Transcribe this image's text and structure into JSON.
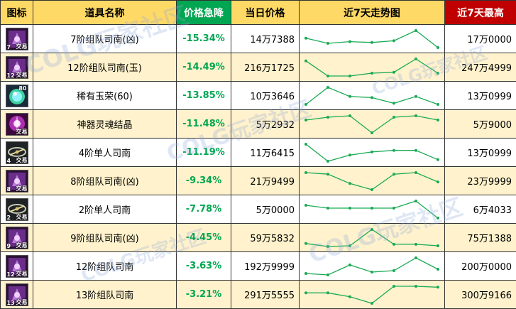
{
  "header": {
    "icon": "图标",
    "name": "道具名称",
    "drop": "价格急降",
    "price": "当日价格",
    "trend": "近7天走势图",
    "max": "近7天最高"
  },
  "colors": {
    "header_bg": "#ffd966",
    "header_green": "#00a651",
    "header_red": "#c00000",
    "row_alt": "#fff2cc",
    "pct_text": "#00a651",
    "spark": "#1aaa55"
  },
  "watermark": {
    "text": "COLG玩家社区"
  },
  "rows": [
    {
      "icon": "purple-rune-icon",
      "badge": "7",
      "badge_label": "交易",
      "count": "",
      "name": "7阶组队司南(凶)",
      "pct": "-15.34%",
      "price": "14万7388",
      "max": "17万0000",
      "trend": [
        55,
        49,
        51,
        50,
        52,
        64,
        44
      ]
    },
    {
      "icon": "purple-rune-icon",
      "badge": "12",
      "badge_label": "交易",
      "count": "",
      "name": "12阶组队司南(玉)",
      "pct": "-14.49%",
      "price": "216万1725",
      "max": "247万4999",
      "trend": [
        57,
        41,
        41,
        44,
        45,
        59,
        44
      ]
    },
    {
      "icon": "green-orb-icon",
      "badge": "",
      "badge_label": "",
      "count": "80",
      "name": "稀有玉荣(60)",
      "pct": "-13.85%",
      "price": "10万3646",
      "max": "13万0999",
      "trend": [
        33,
        48,
        40,
        39,
        34,
        40,
        33
      ]
    },
    {
      "icon": "magenta-crystal-icon",
      "badge": "",
      "badge_label": "交易",
      "count": "",
      "name": "神器灵魂结晶",
      "pct": "-11.48%",
      "price": "5万2932",
      "max": "5万9000",
      "trend": [
        56,
        58,
        59,
        47,
        58,
        59,
        56
      ]
    },
    {
      "icon": "compass-icon",
      "badge": "4",
      "badge_label": "交易",
      "count": "",
      "name": "4阶单人司南",
      "pct": "-11.19%",
      "price": "11万6415",
      "max": "13万0999",
      "trend": [
        60,
        49,
        53,
        55,
        56,
        56,
        50
      ]
    },
    {
      "icon": "purple-rune-icon",
      "badge": "8",
      "badge_label": "交易",
      "count": "",
      "name": "8阶组队司南(凶)",
      "pct": "-9.34%",
      "price": "21万9499",
      "max": "23万9999",
      "trend": [
        64,
        63,
        57,
        53,
        63,
        64,
        58
      ]
    },
    {
      "icon": "compass-icon",
      "badge": "2",
      "badge_label": "交易",
      "count": "",
      "name": "2阶单人司南",
      "pct": "-7.78%",
      "price": "5万0000",
      "max": "6万4033",
      "trend": [
        52,
        50,
        50,
        50,
        50,
        55,
        43
      ]
    },
    {
      "icon": "purple-rune-icon",
      "badge": "9",
      "badge_label": "交易",
      "count": "",
      "name": "9阶组队司南(凶)",
      "pct": "-4.45%",
      "price": "59万5832",
      "max": "75万1388",
      "trend": [
        51,
        47,
        48,
        70,
        50,
        50,
        48
      ]
    },
    {
      "icon": "purple-rune-icon",
      "badge": "12",
      "badge_label": "交易",
      "count": "",
      "name": "12阶组队司南",
      "pct": "-3.63%",
      "price": "192万9999",
      "max": "200万0000",
      "trend": [
        187,
        186,
        193,
        188,
        189,
        198,
        190
      ]
    },
    {
      "icon": "purple-rune-icon",
      "badge": "13",
      "badge_label": "交易",
      "count": "",
      "name": "13阶组队司南",
      "pct": "-3.21%",
      "price": "291万5555",
      "max": "300万9166",
      "trend": [
        290,
        290,
        286,
        279,
        297,
        297,
        296
      ]
    }
  ]
}
